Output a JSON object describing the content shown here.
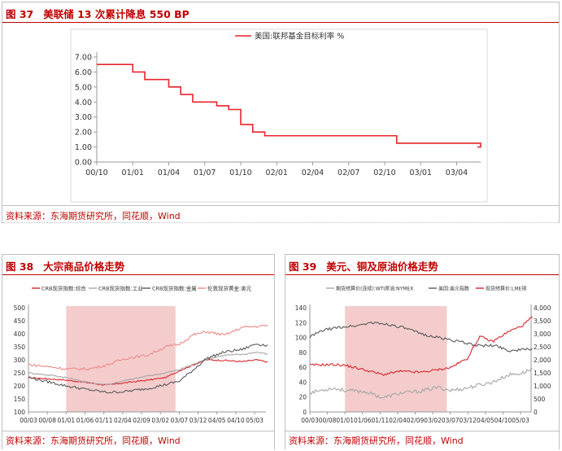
{
  "fig37": {
    "number": "图 37",
    "title": "美联储 13 次累计降息 550 BP",
    "source": "资料来源：东海期货研究所，同花顺，Wind",
    "legend_color": "#e8242b"
  },
  "fig38": {
    "number": "图 38",
    "title": "大宗商品价格走势",
    "source": "资料来源：东海期货研究所，同花顺，Wind"
  },
  "fig39": {
    "number": "图 39",
    "title": "美元、铜及原油价格走势",
    "source": "资料来源：东海期货研究所，同花顺，Wind"
  },
  "chart_data": [
    {
      "id": "fig37",
      "type": "line",
      "series": [
        {
          "name": "美国:联邦基金目标利率 %",
          "color": "#e8242b",
          "points": [
            [
              "00/10",
              6.5
            ],
            [
              "01/01",
              6.0
            ],
            [
              "01/02",
              5.5
            ],
            [
              "01/04",
              5.0
            ],
            [
              "01/05",
              4.5
            ],
            [
              "01/06",
              4.0
            ],
            [
              "01/08",
              3.75
            ],
            [
              "01/09",
              3.5
            ],
            [
              "01/10",
              2.5
            ],
            [
              "01/11",
              2.0
            ],
            [
              "01/12",
              1.75
            ],
            [
              "02/11",
              1.25
            ],
            [
              "03/06",
              1.0
            ]
          ]
        }
      ],
      "x_ticks": [
        "00/10",
        "01/01",
        "01/04",
        "01/07",
        "01/10",
        "02/01",
        "02/04",
        "02/07",
        "02/10",
        "03/01",
        "03/04"
      ],
      "y_ticks": [
        "0.00",
        "1.00",
        "2.00",
        "3.00",
        "4.00",
        "5.00",
        "6.00",
        "7.00"
      ],
      "ylim": [
        0,
        7
      ],
      "grid": false,
      "legend_position": "top-center"
    },
    {
      "id": "fig38",
      "type": "line",
      "series": [
        {
          "name": "CRB现货指数:综合",
          "color": "#d9252b"
        },
        {
          "name": "CRB现货指数:工业",
          "color": "#a6a6a6"
        },
        {
          "name": "CRB现货指数:金属",
          "color": "#595959"
        },
        {
          "name": "伦敦现货黄金:美元",
          "color": "#ee8a88"
        }
      ],
      "x_ticks": [
        "00/03",
        "00/08",
        "01/01",
        "01/06",
        "01/11",
        "02/04",
        "02/09",
        "03/02",
        "03/07",
        "03/12",
        "04/05",
        "04/10",
        "05/03"
      ],
      "y_ticks": [
        "100",
        "150",
        "200",
        "250",
        "300",
        "350",
        "400",
        "450",
        "500"
      ],
      "ylim": [
        100,
        500
      ],
      "shaded_range": [
        "01/01",
        "03/06"
      ],
      "grid": false,
      "legend_position": "top"
    },
    {
      "id": "fig39",
      "type": "line",
      "series": [
        {
          "name": "期货结算价(连续):WTI原油:NYMEX",
          "color": "#a6a6a6",
          "axis": "left"
        },
        {
          "name": "美国:美元指数",
          "color": "#595959",
          "axis": "left"
        },
        {
          "name": "现货结算价:LME铜",
          "color": "#d9252b",
          "axis": "right"
        }
      ],
      "x_ticks": [
        "00/03",
        "00/08",
        "01/01",
        "01/06",
        "01/11",
        "02/04",
        "02/09",
        "03/02",
        "03/07",
        "03/12",
        "04/05",
        "04/10",
        "05/03"
      ],
      "y_ticks_left": [
        "0",
        "20",
        "40",
        "60",
        "80",
        "100",
        "120",
        "140"
      ],
      "y_ticks_right": [
        "0",
        "500",
        "1,000",
        "1,500",
        "2,000",
        "2,500",
        "3,000",
        "3,500",
        "4,000"
      ],
      "ylim_left": [
        0,
        140
      ],
      "ylim_right": [
        0,
        4000
      ],
      "shaded_range": [
        "01/01",
        "03/06"
      ],
      "grid": false,
      "legend_position": "top"
    }
  ]
}
